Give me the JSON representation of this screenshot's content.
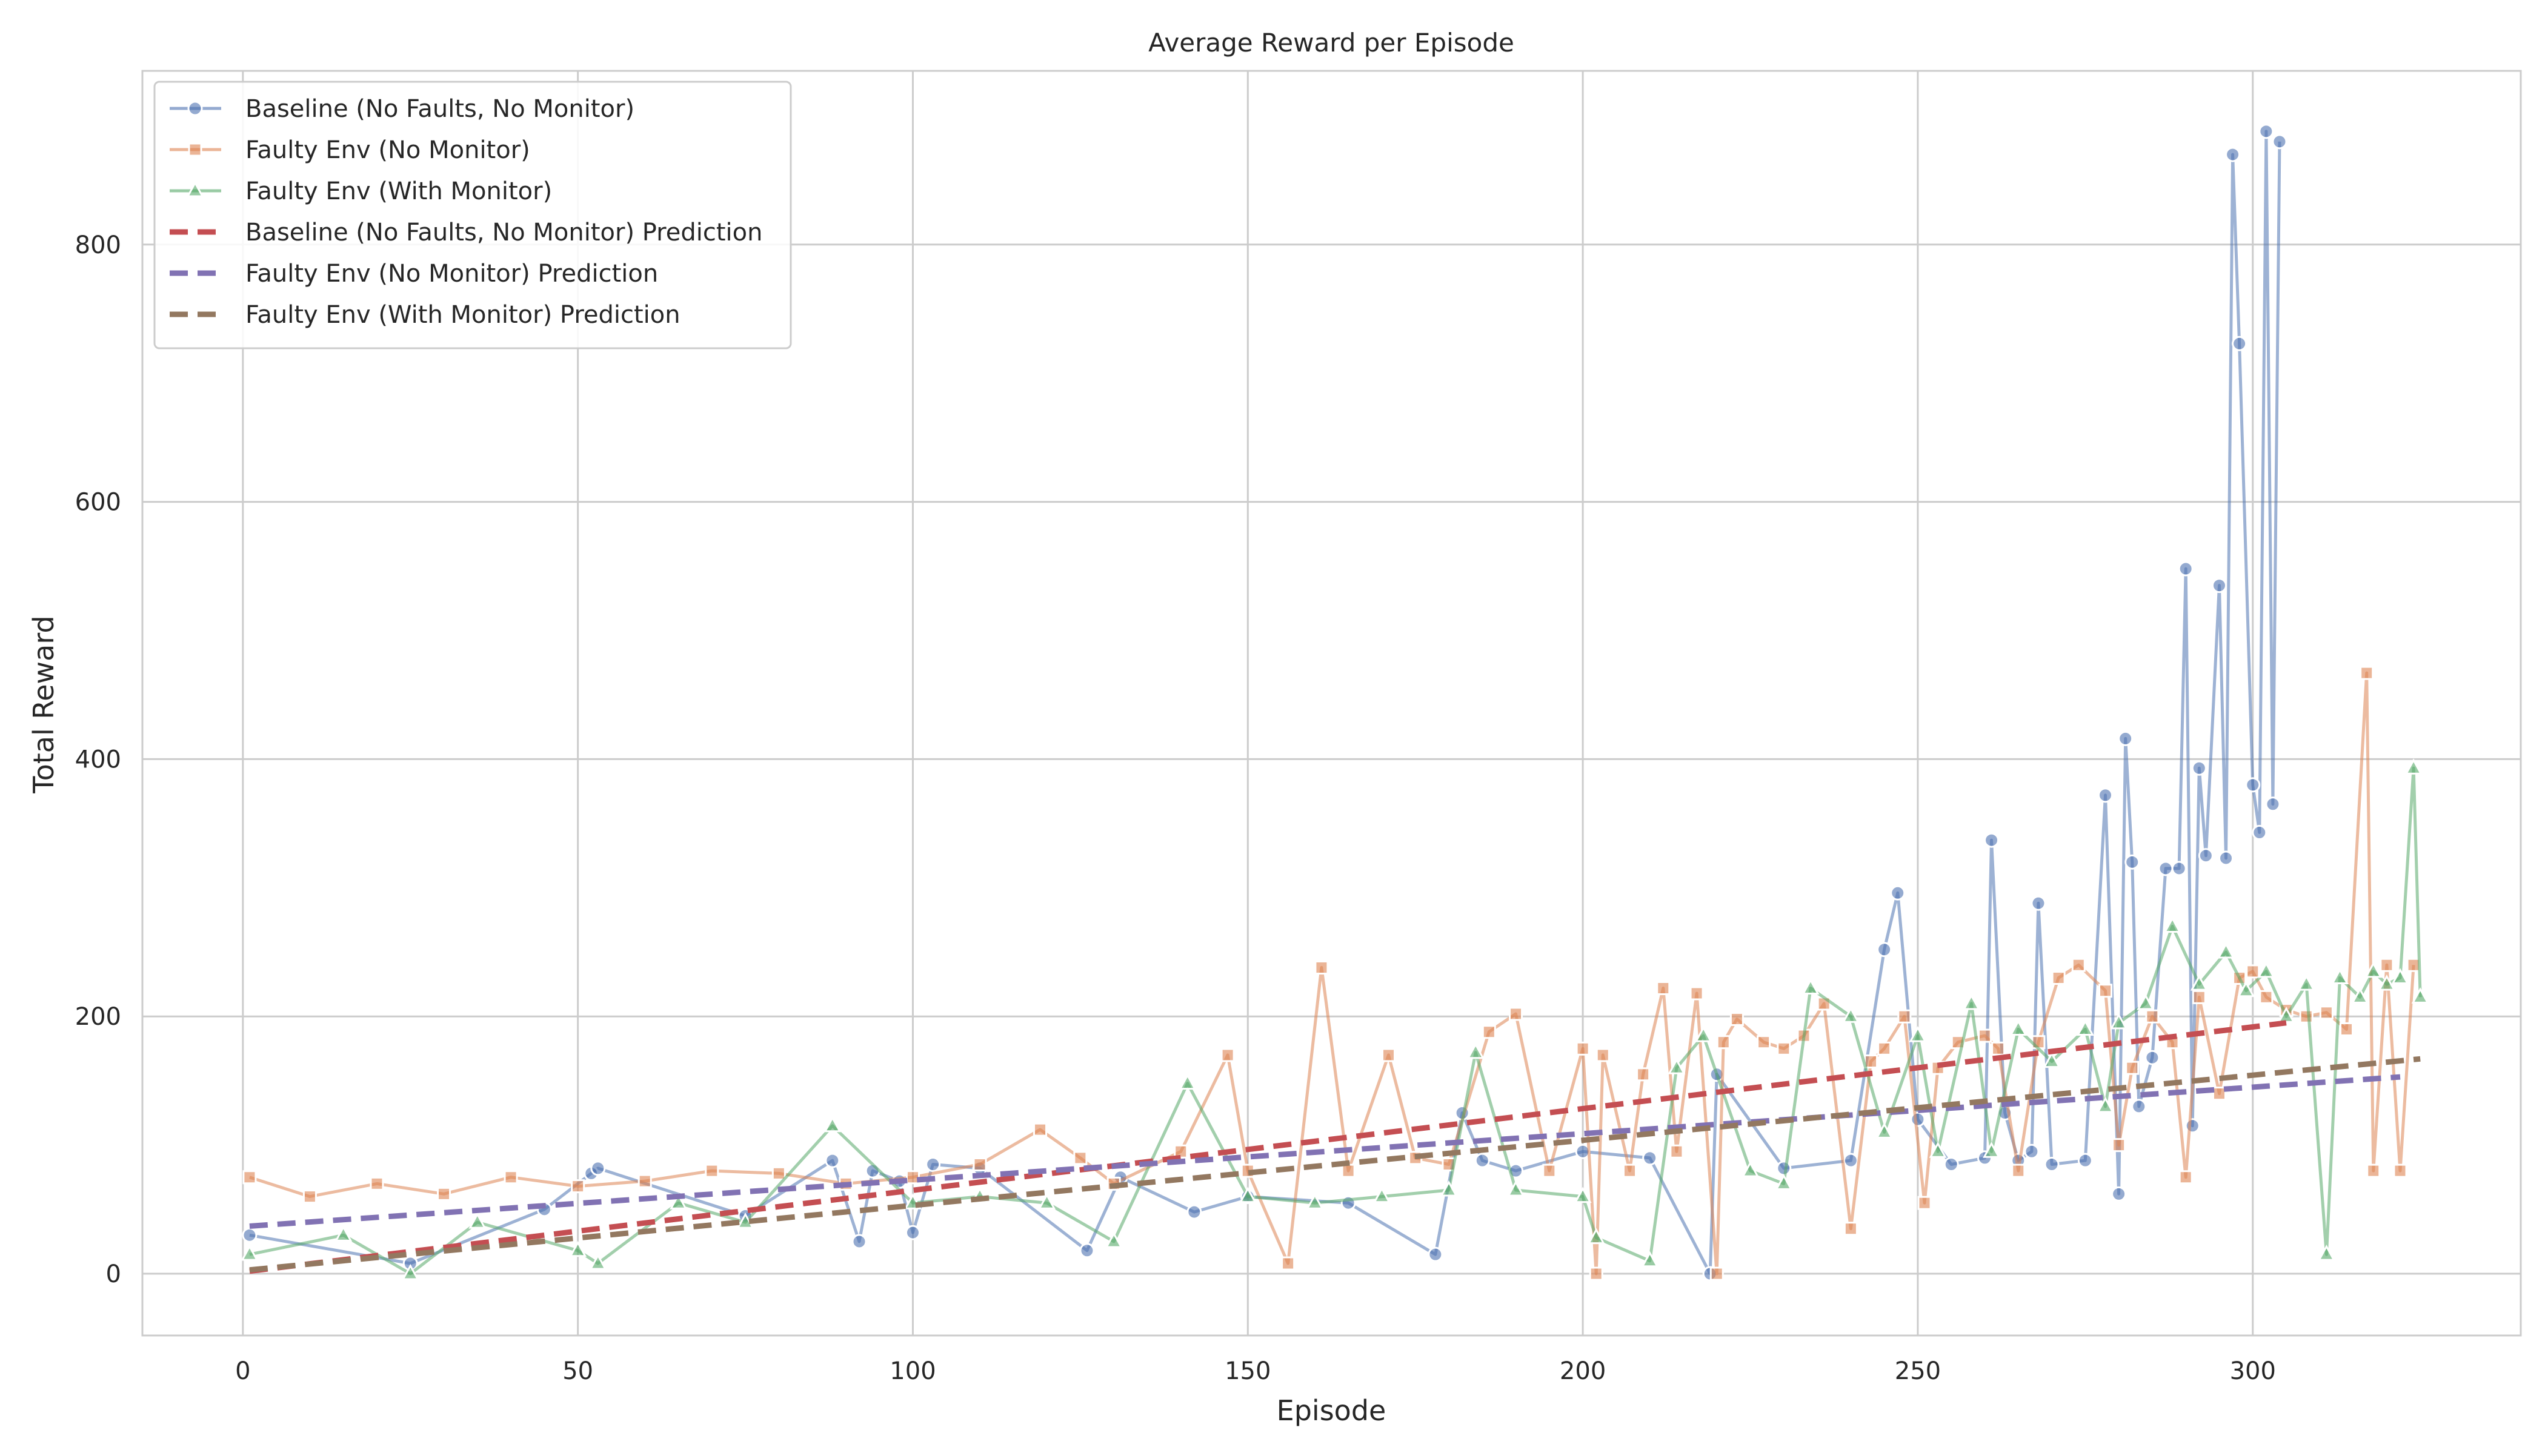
{
  "chart_data": {
    "type": "line",
    "title": "Average Reward per Episode",
    "xlabel": "Episode",
    "ylabel": "Total Reward",
    "xlim": [
      -15,
      340
    ],
    "ylim": [
      -48,
      935
    ],
    "x_ticks": [
      0,
      50,
      100,
      150,
      200,
      250,
      300
    ],
    "y_ticks": [
      0,
      200,
      400,
      600,
      800
    ],
    "grid": true,
    "legend_position": "top-left",
    "series": [
      {
        "name": "Baseline (No Faults, No Monitor)",
        "color": "#4C72B0",
        "marker": "circle",
        "style": "solid",
        "x": [
          1,
          25,
          45,
          52,
          53,
          75,
          88,
          92,
          94,
          98,
          100,
          103,
          110,
          126,
          131,
          142,
          150,
          165,
          178,
          182,
          185,
          190,
          200,
          210,
          219,
          220,
          230,
          240,
          245,
          247,
          250,
          255,
          260,
          261,
          263,
          265,
          267,
          268,
          270,
          275,
          278,
          280,
          281,
          282,
          283,
          285,
          287,
          289,
          290,
          291,
          292,
          293,
          295,
          296,
          297,
          298,
          300,
          301,
          302,
          303,
          304
        ],
        "y": [
          30,
          8,
          50,
          78,
          82,
          45,
          88,
          25,
          80,
          72,
          32,
          85,
          82,
          18,
          75,
          48,
          60,
          55,
          15,
          125,
          88,
          80,
          95,
          90,
          0,
          155,
          82,
          88,
          252,
          296,
          120,
          85,
          90,
          337,
          125,
          88,
          95,
          288,
          85,
          88,
          372,
          62,
          416,
          320,
          130,
          168,
          315,
          315,
          548,
          115,
          393,
          325,
          535,
          323,
          870,
          723,
          380,
          343,
          888,
          365,
          880
        ]
      },
      {
        "name": "Faulty Env (No Monitor)",
        "color": "#DD8452",
        "marker": "square",
        "style": "solid",
        "x": [
          1,
          10,
          20,
          30,
          40,
          50,
          60,
          70,
          80,
          90,
          100,
          110,
          119,
          125,
          130,
          140,
          147,
          150,
          156,
          161,
          165,
          171,
          175,
          180,
          186,
          190,
          195,
          200,
          202,
          203,
          207,
          209,
          212,
          214,
          217,
          220,
          221,
          223,
          227,
          230,
          233,
          236,
          240,
          243,
          245,
          248,
          251,
          253,
          256,
          260,
          262,
          265,
          268,
          271,
          274,
          278,
          280,
          282,
          285,
          288,
          290,
          292,
          295,
          298,
          300,
          302,
          305,
          308,
          311,
          314,
          317,
          318,
          320,
          322,
          324
        ],
        "y": [
          75,
          60,
          70,
          62,
          75,
          68,
          72,
          80,
          78,
          70,
          75,
          85,
          112,
          90,
          70,
          95,
          170,
          80,
          8,
          238,
          80,
          170,
          90,
          85,
          188,
          202,
          80,
          175,
          0,
          170,
          80,
          155,
          222,
          95,
          218,
          0,
          180,
          198,
          180,
          175,
          185,
          210,
          35,
          165,
          175,
          200,
          55,
          160,
          180,
          185,
          175,
          80,
          180,
          230,
          240,
          220,
          100,
          160,
          200,
          180,
          75,
          215,
          140,
          230,
          235,
          215,
          205,
          200,
          203,
          190,
          467,
          80,
          240,
          80,
          240
        ]
      },
      {
        "name": "Faulty Env (With Monitor)",
        "color": "#55A868",
        "marker": "triangle",
        "style": "solid",
        "x": [
          1,
          15,
          25,
          35,
          50,
          53,
          65,
          75,
          88,
          100,
          110,
          120,
          130,
          141,
          150,
          160,
          170,
          180,
          184,
          190,
          200,
          202,
          210,
          214,
          218,
          225,
          230,
          234,
          240,
          245,
          250,
          253,
          258,
          261,
          265,
          270,
          275,
          278,
          280,
          284,
          288,
          292,
          296,
          299,
          302,
          305,
          308,
          311,
          313,
          316,
          318,
          320,
          322,
          324,
          325
        ],
        "y": [
          15,
          30,
          0,
          40,
          18,
          8,
          55,
          40,
          115,
          55,
          60,
          55,
          25,
          148,
          60,
          55,
          60,
          65,
          172,
          65,
          60,
          28,
          10,
          160,
          185,
          80,
          70,
          222,
          200,
          110,
          185,
          95,
          210,
          95,
          190,
          165,
          190,
          130,
          195,
          210,
          270,
          225,
          250,
          220,
          235,
          200,
          225,
          15,
          230,
          215,
          235,
          225,
          230,
          393,
          215
        ]
      },
      {
        "name": "Baseline (No Faults, No Monitor) Prediction",
        "color": "#C44E52",
        "marker": "none",
        "style": "dashed",
        "x": [
          1,
          305
        ],
        "y": [
          2,
          195
        ]
      },
      {
        "name": "Faulty Env (No Monitor) Prediction",
        "color": "#8172B3",
        "marker": "none",
        "style": "dashed",
        "x": [
          1,
          322
        ],
        "y": [
          37,
          153
        ]
      },
      {
        "name": "Faulty Env (With Monitor) Prediction",
        "color": "#937860",
        "marker": "none",
        "style": "dashed",
        "x": [
          1,
          325
        ],
        "y": [
          3,
          167
        ]
      }
    ]
  }
}
